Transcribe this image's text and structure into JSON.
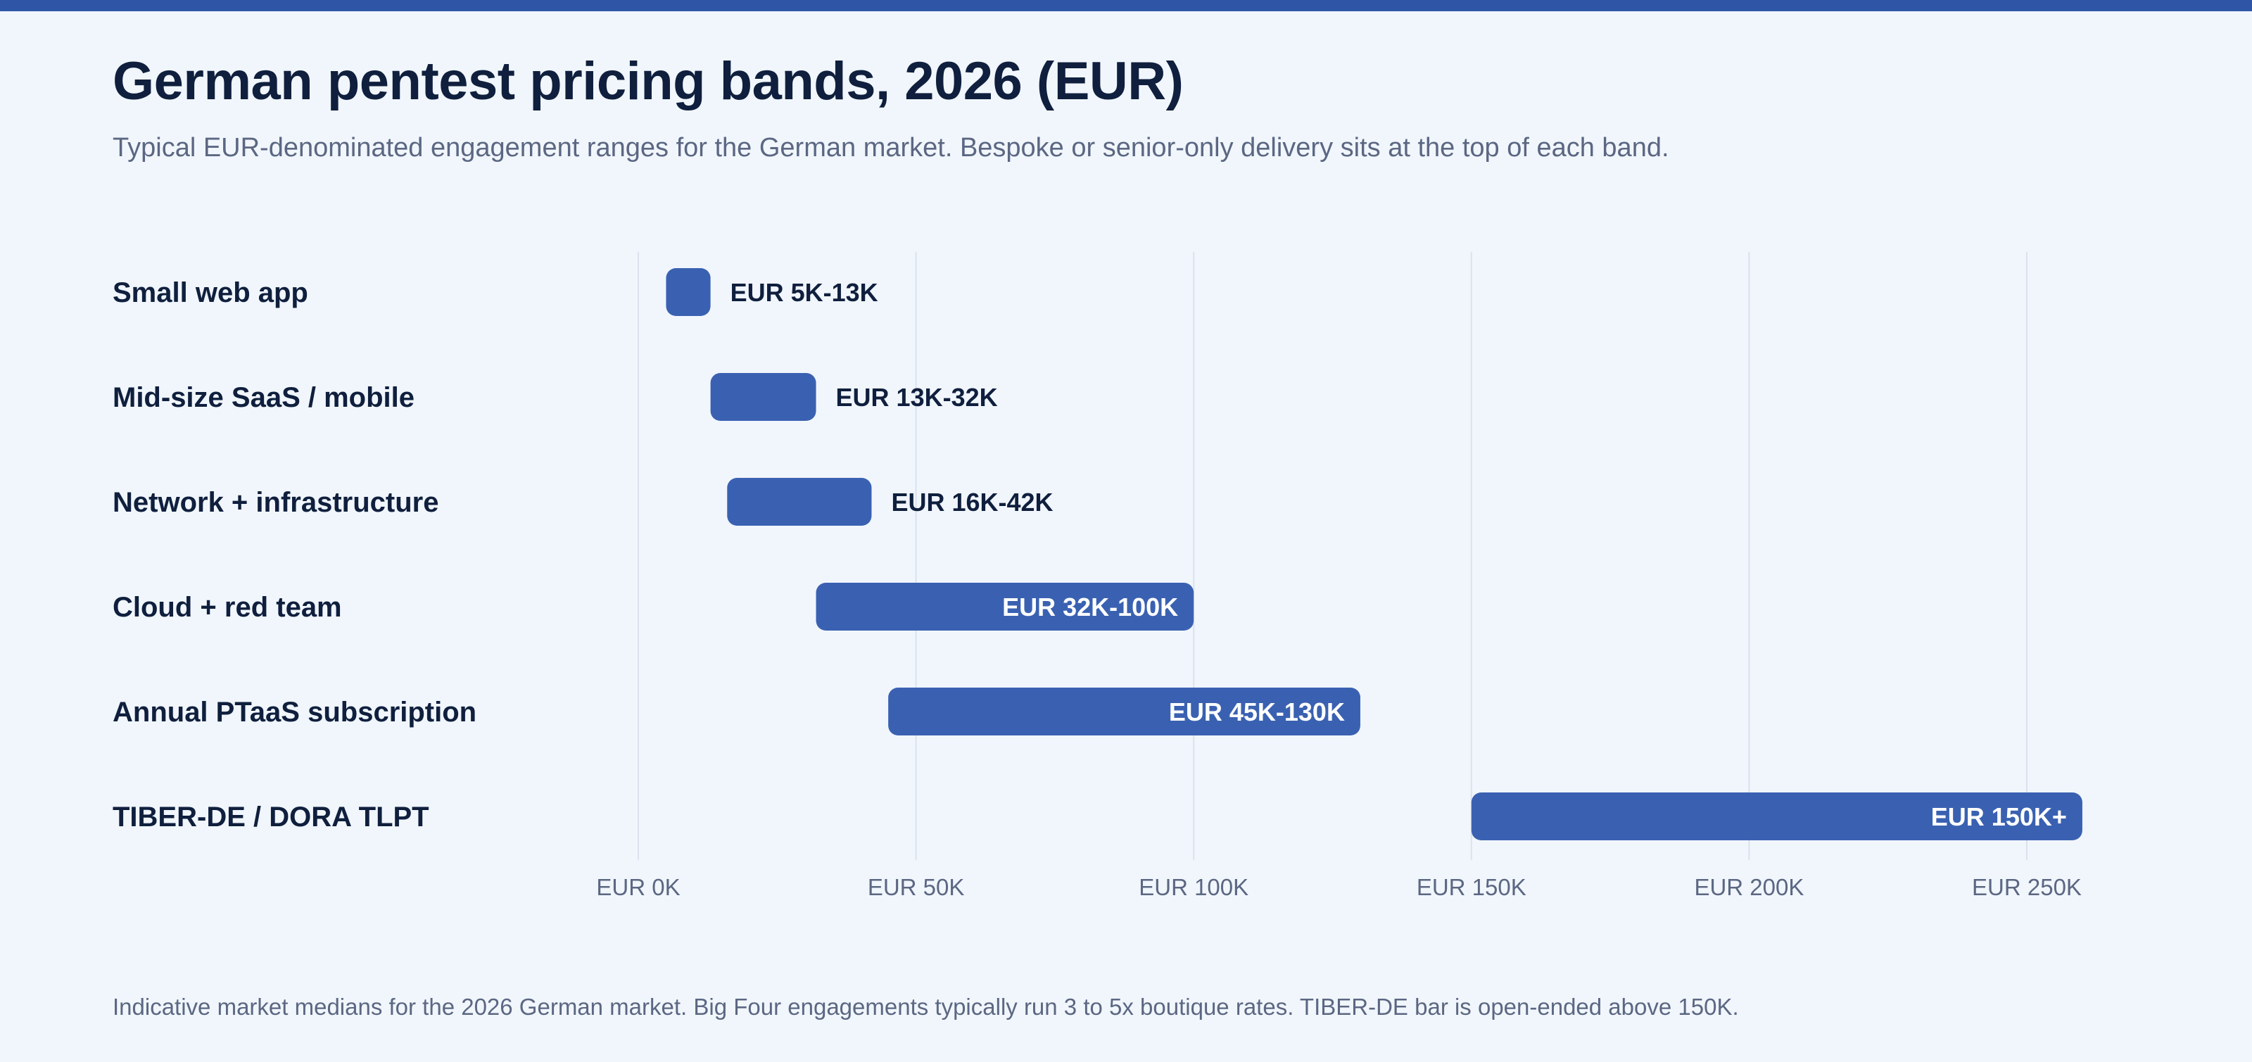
{
  "header": {
    "title": "German pentest pricing bands, 2026 (EUR)",
    "subtitle": "Typical EUR-denominated engagement ranges for the German market. Bespoke or senior-only delivery sits at the top of each band."
  },
  "footnote": "Indicative market medians for the 2026 German market. Big Four engagements typically run 3 to 5x boutique rates. TIBER-DE bar is open-ended above 150K.",
  "colors": {
    "accent": "#2f56a6",
    "bar": "#3a61b1",
    "gridline": "#dbe2ee",
    "background": "#f1f6fd",
    "title": "#0f1f3d",
    "muted": "#5b6782"
  },
  "chart_data": {
    "type": "bar",
    "orientation": "horizontal-range",
    "title": "German pentest pricing bands, 2026 (EUR)",
    "xlabel": "",
    "ylabel": "",
    "xlim": [
      0,
      250000
    ],
    "grid": true,
    "ticks": [
      {
        "value": 0,
        "label": "EUR 0K"
      },
      {
        "value": 50000,
        "label": "EUR 50K"
      },
      {
        "value": 100000,
        "label": "EUR 100K"
      },
      {
        "value": 150000,
        "label": "EUR 150K"
      },
      {
        "value": 200000,
        "label": "EUR 200K"
      },
      {
        "value": 250000,
        "label": "EUR 250K"
      }
    ],
    "categories": [
      "Small web app",
      "Mid-size SaaS / mobile",
      "Network + infrastructure",
      "Cloud + red team",
      "Annual PTaaS subscription",
      "TIBER-DE / DORA TLPT"
    ],
    "ranges": [
      {
        "low": 5000,
        "high": 13000,
        "label": "EUR 5K-13K",
        "label_inside": false
      },
      {
        "low": 13000,
        "high": 32000,
        "label": "EUR 13K-32K",
        "label_inside": false
      },
      {
        "low": 16000,
        "high": 42000,
        "label": "EUR 16K-42K",
        "label_inside": false
      },
      {
        "low": 32000,
        "high": 100000,
        "label": "EUR 32K-100K",
        "label_inside": true
      },
      {
        "low": 45000,
        "high": 130000,
        "label": "EUR 45K-130K",
        "label_inside": true
      },
      {
        "low": 150000,
        "high": 260000,
        "label": "EUR 150K+",
        "label_inside": true
      }
    ]
  }
}
